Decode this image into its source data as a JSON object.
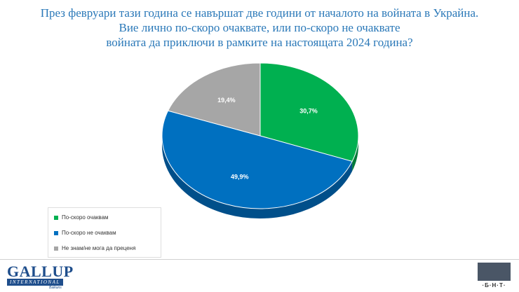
{
  "chart_data": {
    "type": "pie",
    "title_lines": [
      "През февруари тази година се навършат две години от началото на войната в Украйна.",
      "Вие лично по-скоро очаквате, или по-скоро не очаквате",
      "войната да приключи в рамките на настоящата 2024 година?"
    ],
    "slices": [
      {
        "label": "По-скоро очаквам",
        "value": 30.7,
        "display": "30,7%",
        "color": "#00b050",
        "side": "#007a38"
      },
      {
        "label": "По-скоро не очаквам",
        "value": 49.9,
        "display": "49,9%",
        "color": "#0070c0",
        "side": "#004f8a"
      },
      {
        "label": "Не знам/не мога да преценя",
        "value": 19.4,
        "display": "19,4%",
        "color": "#a6a6a6",
        "side": "#7a7a7a"
      }
    ]
  },
  "footer": {
    "gallup_main": "GALLUP",
    "gallup_sub": "INTERNATIONAL",
    "gallup_region": "Balkans",
    "bnt_label": "·Б·Н·Т·"
  }
}
